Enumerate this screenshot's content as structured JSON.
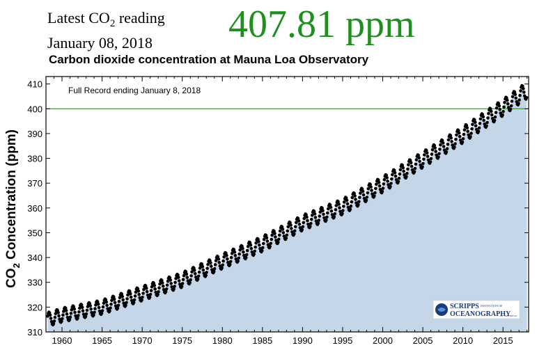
{
  "header": {
    "reading_prefix": "Latest CO",
    "reading_sub": "2",
    "reading_suffix": " reading",
    "date": "January 08, 2018",
    "value": "407.81 ppm",
    "title": "Carbon dioxide concentration at Mauna Loa Observatory"
  },
  "logo": {
    "line1": "SCRIPPS",
    "line1_small": "INSTITUTION OF",
    "line2": "OCEANOGRAPHY",
    "line2_small": "UC SAN DIEGO"
  },
  "colors": {
    "area_fill": "#c5d6e8",
    "value_green": "#1f8f1f",
    "reference_line": "#2e8b2e",
    "points": "#000000"
  },
  "chart_data": {
    "type": "scatter",
    "title": "Carbon dioxide concentration at Mauna Loa Observatory",
    "annotation": "Full Record ending January 8, 2018",
    "ylabel_main": "CO",
    "ylabel_sub": "2",
    "ylabel_rest": " Concentration (ppm)",
    "xlabel": "",
    "xlim": [
      1958,
      2018.2
    ],
    "ylim": [
      310,
      413
    ],
    "xticks": [
      1960,
      1965,
      1970,
      1975,
      1980,
      1985,
      1990,
      1995,
      2000,
      2005,
      2010,
      2015
    ],
    "yticks": [
      310,
      320,
      330,
      340,
      350,
      360,
      370,
      380,
      390,
      400,
      410
    ],
    "reference_line": 400,
    "area_fill_under_data": true,
    "trend_knots": {
      "x": [
        1958.2,
        1960,
        1965,
        1970,
        1975,
        1980,
        1985,
        1990,
        1995,
        2000,
        2005,
        2010,
        2015,
        2018.0
      ],
      "y": [
        315.0,
        316.8,
        320.0,
        325.5,
        331.0,
        338.5,
        345.5,
        354.0,
        360.5,
        369.5,
        379.5,
        389.5,
        400.5,
        407.5
      ]
    },
    "seasonal_amplitude_start": 2.8,
    "seasonal_amplitude_end": 3.3,
    "points_per_year": 12
  }
}
